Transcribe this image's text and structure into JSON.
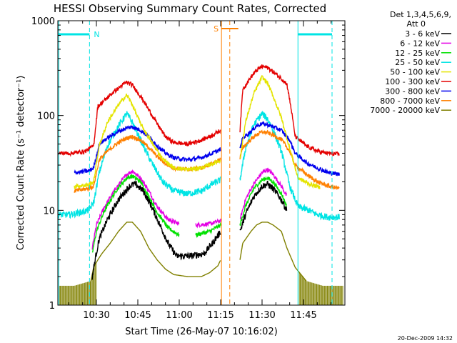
{
  "chart_data": {
    "type": "line",
    "title": "HESSI Observing Summary Count Rates, Corrected",
    "xlabel": "Start Time (26-May-07 10:16:02)",
    "ylabel": "Corrected Count Rate (s⁻¹ detector⁻¹)",
    "yscale": "log",
    "ylim": [
      1,
      1000
    ],
    "xlim_minutes": [
      16.03,
      120
    ],
    "x_ticks": [
      {
        "label": "10:30",
        "minutes": 30
      },
      {
        "label": "10:45",
        "minutes": 45
      },
      {
        "label": "11:00",
        "minutes": 60
      },
      {
        "label": "11:15",
        "minutes": 75
      },
      {
        "label": "11:30",
        "minutes": 90
      },
      {
        "label": "11:45",
        "minutes": 105
      }
    ],
    "y_ticks": [
      {
        "label": "1",
        "value": 1
      },
      {
        "label": "10",
        "value": 10
      },
      {
        "label": "100",
        "value": 100
      },
      {
        "label": "1000",
        "value": 1000
      }
    ],
    "legend_header": [
      "Det 1,3,4,5,6,9,",
      "Att 0"
    ],
    "series": [
      {
        "name": "3 - 6 keV",
        "color": "#000000",
        "points": [
          [
            28.5,
            2
          ],
          [
            29.5,
            3
          ],
          [
            31,
            5
          ],
          [
            34,
            8
          ],
          [
            38,
            13
          ],
          [
            42,
            18
          ],
          [
            44,
            19
          ],
          [
            47,
            16
          ],
          [
            50,
            11
          ],
          [
            53,
            7
          ],
          [
            56,
            4.5
          ],
          [
            59,
            3.3
          ],
          [
            64,
            3.3
          ],
          [
            69,
            3.5
          ],
          [
            72,
            4.5
          ],
          [
            75,
            6
          ],
          [
            82,
            6
          ],
          [
            84,
            9
          ],
          [
            87,
            14
          ],
          [
            90,
            18
          ],
          [
            92,
            19
          ],
          [
            94,
            17
          ],
          [
            97,
            13
          ],
          [
            99,
            10
          ]
        ]
      },
      {
        "name": "6 - 12 keV",
        "color": "#e400e4",
        "points": [
          [
            28.5,
            4
          ],
          [
            30,
            7
          ],
          [
            33,
            11
          ],
          [
            37,
            17
          ],
          [
            41,
            24
          ],
          [
            43,
            26
          ],
          [
            46,
            22
          ],
          [
            49,
            16
          ],
          [
            52,
            11
          ],
          [
            56,
            8
          ],
          [
            60,
            7.2
          ],
          [
            66,
            7
          ],
          [
            71,
            7.2
          ],
          [
            75,
            7.8
          ],
          [
            82,
            8
          ],
          [
            84,
            13
          ],
          [
            87,
            19
          ],
          [
            90,
            25
          ],
          [
            92,
            27
          ],
          [
            94,
            24
          ],
          [
            97,
            18
          ],
          [
            99,
            14
          ]
        ]
      },
      {
        "name": "12 - 25 keV",
        "color": "#00e000",
        "points": [
          [
            28.5,
            3.5
          ],
          [
            30,
            6
          ],
          [
            33,
            10
          ],
          [
            37,
            16
          ],
          [
            41,
            22
          ],
          [
            43,
            23
          ],
          [
            46,
            20
          ],
          [
            49,
            14
          ],
          [
            52,
            9.5
          ],
          [
            56,
            6.5
          ],
          [
            60,
            5.5
          ],
          [
            66,
            5.5
          ],
          [
            71,
            6
          ],
          [
            75,
            7
          ],
          [
            82,
            7
          ],
          [
            84,
            11
          ],
          [
            87,
            17
          ],
          [
            90,
            21
          ],
          [
            92,
            22
          ],
          [
            94,
            20
          ],
          [
            97,
            15
          ],
          [
            99,
            11
          ]
        ]
      },
      {
        "name": "25 - 50 keV",
        "color": "#00e4e4",
        "points": [
          [
            16.2,
            9
          ],
          [
            20,
            9
          ],
          [
            24,
            9.5
          ],
          [
            27,
            10
          ],
          [
            29,
            12
          ],
          [
            31,
            25
          ],
          [
            34,
            48
          ],
          [
            38,
            78
          ],
          [
            41,
            105
          ],
          [
            43,
            85
          ],
          [
            46,
            55
          ],
          [
            50,
            32
          ],
          [
            54,
            20
          ],
          [
            58,
            16
          ],
          [
            63,
            15
          ],
          [
            68,
            16
          ],
          [
            72,
            19
          ],
          [
            75,
            21
          ],
          [
            82,
            21
          ],
          [
            84,
            45
          ],
          [
            87,
            80
          ],
          [
            90,
            105
          ],
          [
            92,
            92
          ],
          [
            94,
            70
          ],
          [
            97,
            42
          ],
          [
            100,
            18
          ],
          [
            103,
            11
          ],
          [
            107,
            10
          ],
          [
            110,
            9
          ],
          [
            114,
            8.5
          ],
          [
            118,
            8.5
          ]
        ]
      },
      {
        "name": "50 - 100 keV",
        "color": "#e4e400",
        "points": [
          [
            16.2,
            18
          ],
          [
            22,
            18
          ],
          [
            27,
            18.5
          ],
          [
            29,
            20
          ],
          [
            31,
            48
          ],
          [
            34,
            85
          ],
          [
            38,
            130
          ],
          [
            41,
            165
          ],
          [
            43,
            130
          ],
          [
            46,
            82
          ],
          [
            50,
            52
          ],
          [
            54,
            35
          ],
          [
            58,
            28
          ],
          [
            63,
            27
          ],
          [
            68,
            28
          ],
          [
            72,
            31
          ],
          [
            75,
            34
          ],
          [
            82,
            34
          ],
          [
            84,
            85
          ],
          [
            87,
            170
          ],
          [
            90,
            255
          ],
          [
            92,
            220
          ],
          [
            94,
            160
          ],
          [
            97,
            95
          ],
          [
            100,
            45
          ],
          [
            103,
            22
          ],
          [
            107,
            19
          ],
          [
            111,
            17.5
          ],
          [
            118,
            17
          ]
        ]
      },
      {
        "name": "100 - 300 keV",
        "color": "#e40000",
        "points": [
          [
            16.2,
            40
          ],
          [
            21,
            40
          ],
          [
            26,
            42
          ],
          [
            29,
            48
          ],
          [
            30.5,
            125
          ],
          [
            33,
            145
          ],
          [
            36,
            175
          ],
          [
            39,
            205
          ],
          [
            41,
            225
          ],
          [
            43,
            210
          ],
          [
            46,
            160
          ],
          [
            49,
            115
          ],
          [
            52,
            82
          ],
          [
            55,
            60
          ],
          [
            58,
            52
          ],
          [
            63,
            50
          ],
          [
            68,
            55
          ],
          [
            72,
            62
          ],
          [
            75,
            70
          ],
          [
            82,
            70
          ],
          [
            83,
            190
          ],
          [
            86,
            255
          ],
          [
            88,
            300
          ],
          [
            90,
            330
          ],
          [
            92,
            320
          ],
          [
            94,
            290
          ],
          [
            97,
            245
          ],
          [
            99,
            215
          ],
          [
            100.5,
            120
          ],
          [
            102,
            60
          ],
          [
            106,
            48
          ],
          [
            110,
            42
          ],
          [
            114,
            40
          ],
          [
            118,
            39
          ]
        ]
      },
      {
        "name": "300 - 800 keV",
        "color": "#0000ee",
        "points": [
          [
            16.2,
            25
          ],
          [
            22,
            25
          ],
          [
            27,
            26
          ],
          [
            29,
            28
          ],
          [
            31,
            50
          ],
          [
            34,
            58
          ],
          [
            38,
            68
          ],
          [
            41,
            74
          ],
          [
            43,
            76
          ],
          [
            46,
            70
          ],
          [
            49,
            60
          ],
          [
            52,
            48
          ],
          [
            55,
            40
          ],
          [
            58,
            36
          ],
          [
            63,
            34
          ],
          [
            68,
            36
          ],
          [
            72,
            40
          ],
          [
            75,
            44
          ],
          [
            82,
            44
          ],
          [
            83,
            58
          ],
          [
            86,
            68
          ],
          [
            88,
            78
          ],
          [
            90,
            82
          ],
          [
            92,
            80
          ],
          [
            94,
            76
          ],
          [
            97,
            70
          ],
          [
            100,
            55
          ],
          [
            102,
            40
          ],
          [
            106,
            32
          ],
          [
            110,
            28
          ],
          [
            114,
            25
          ],
          [
            118,
            24
          ]
        ]
      },
      {
        "name": "800 - 7000 keV",
        "color": "#ff8000",
        "points": [
          [
            16.2,
            16
          ],
          [
            22,
            16
          ],
          [
            27,
            17
          ],
          [
            29,
            18
          ],
          [
            31,
            34
          ],
          [
            34,
            42
          ],
          [
            38,
            52
          ],
          [
            41,
            58
          ],
          [
            43,
            60
          ],
          [
            46,
            55
          ],
          [
            49,
            46
          ],
          [
            52,
            37
          ],
          [
            55,
            31
          ],
          [
            58,
            28
          ],
          [
            63,
            27
          ],
          [
            68,
            28
          ],
          [
            72,
            31
          ],
          [
            75,
            35
          ],
          [
            82,
            35
          ],
          [
            83,
            46
          ],
          [
            86,
            56
          ],
          [
            88,
            63
          ],
          [
            90,
            67
          ],
          [
            92,
            66
          ],
          [
            94,
            62
          ],
          [
            97,
            56
          ],
          [
            100,
            42
          ],
          [
            102,
            30
          ],
          [
            106,
            24
          ],
          [
            110,
            20
          ],
          [
            114,
            18
          ],
          [
            118,
            17
          ]
        ]
      },
      {
        "name": "7000 - 20000 keV",
        "color": "#808000",
        "points": [
          [
            16.2,
            1.6
          ],
          [
            22,
            1.6
          ],
          [
            28,
            1.8
          ],
          [
            29,
            2.5
          ],
          [
            30.5,
            3
          ],
          [
            32,
            3.5
          ],
          [
            35,
            4.5
          ],
          [
            38,
            6
          ],
          [
            41,
            7.5
          ],
          [
            43,
            7.5
          ],
          [
            46,
            6
          ],
          [
            49,
            4
          ],
          [
            52,
            3
          ],
          [
            55,
            2.4
          ],
          [
            58,
            2.1
          ],
          [
            63,
            2
          ],
          [
            68,
            2
          ],
          [
            71,
            2.2
          ],
          [
            74,
            2.6
          ],
          [
            75,
            3
          ],
          [
            82,
            3
          ],
          [
            83,
            4.5
          ],
          [
            86,
            6
          ],
          [
            88,
            7
          ],
          [
            90,
            7.5
          ],
          [
            92,
            7.5
          ],
          [
            94,
            7
          ],
          [
            97,
            6
          ],
          [
            99,
            4
          ],
          [
            102,
            2.5
          ],
          [
            106,
            1.8
          ],
          [
            112,
            1.6
          ],
          [
            118,
            1.6
          ]
        ]
      }
    ],
    "annotations": [
      {
        "label": "N",
        "color": "#00e4e4"
      },
      {
        "label": "S",
        "color": "#ff8000"
      }
    ],
    "timestamp": "20-Dec-2009 14:32",
    "grid": false,
    "legend_position": "right"
  }
}
